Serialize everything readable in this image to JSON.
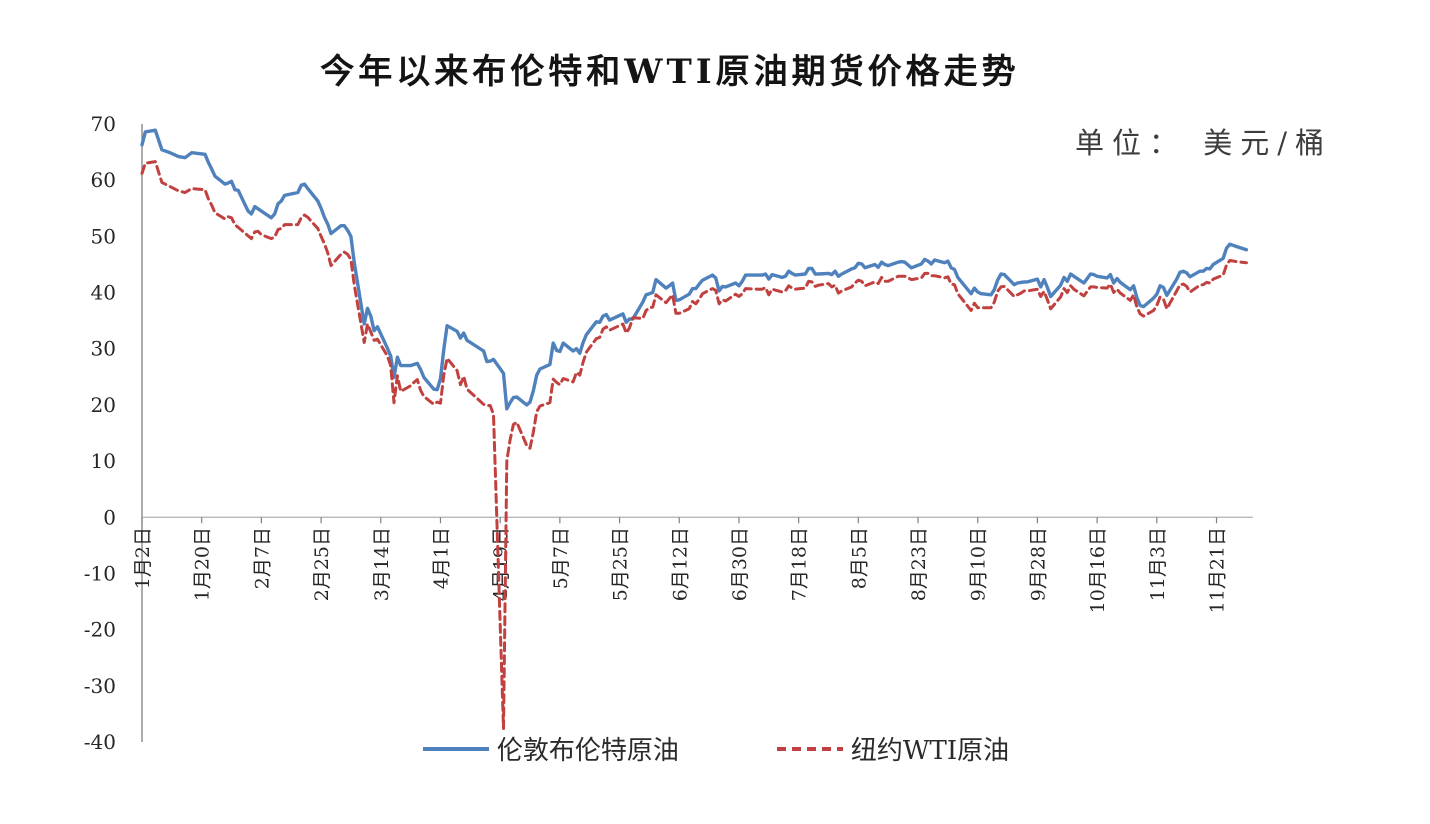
{
  "title": "今年以来布伦特和WTI原油期货价格走势",
  "unit_label": "单位： 美元/桶",
  "legend": {
    "items": [
      {
        "label": "伦敦布伦特原油",
        "color": "#4f81bd",
        "style": "solid"
      },
      {
        "label": "纽约WTI原油",
        "color": "#c0413f",
        "style": "dashed"
      }
    ]
  },
  "chart_data": {
    "type": "line",
    "title": "今年以来布伦特和WTI原油期货价格走势",
    "unit": "美元/桶",
    "xlabel": "",
    "ylabel": "美元/桶",
    "ylim": [
      -40,
      70
    ],
    "ytick_step": 10,
    "grid": false,
    "legend_position": "bottom",
    "x_tick_labels": [
      "1月2日",
      "1月20日",
      "2月7日",
      "2月25日",
      "3月14日",
      "4月1日",
      "4月19日",
      "5月7日",
      "5月25日",
      "6月12日",
      "6月30日",
      "7月18日",
      "8月5日",
      "8月23日",
      "9月10日",
      "9月28日",
      "10月16日",
      "11月3日",
      "11月21日"
    ],
    "x_tick_days": [
      0,
      18,
      36,
      54,
      72,
      90,
      108,
      126,
      144,
      162,
      180,
      198,
      216,
      234,
      252,
      270,
      288,
      306,
      324
    ],
    "x_domain_days": [
      0,
      335
    ],
    "days": [
      0,
      1,
      4,
      6,
      8,
      11,
      13,
      15,
      19,
      20,
      21,
      22,
      25,
      26,
      27,
      28,
      29,
      32,
      33,
      34,
      35,
      36,
      39,
      40,
      41,
      42,
      43,
      47,
      48,
      49,
      50,
      53,
      54,
      55,
      56,
      57,
      60,
      61,
      62,
      63,
      64,
      67,
      68,
      69,
      70,
      71,
      74,
      75,
      76,
      77,
      78,
      81,
      82,
      83,
      84,
      85,
      88,
      89,
      90,
      91,
      92,
      95,
      96,
      97,
      98,
      103,
      104,
      105,
      106,
      109,
      110,
      111,
      112,
      113,
      116,
      117,
      118,
      119,
      120,
      123,
      124,
      125,
      126,
      127,
      130,
      131,
      132,
      133,
      134,
      137,
      138,
      139,
      140,
      141,
      145,
      146,
      147,
      148,
      151,
      152,
      153,
      154,
      155,
      158,
      159,
      160,
      161,
      162,
      165,
      166,
      167,
      168,
      169,
      172,
      173,
      174,
      175,
      176,
      179,
      180,
      181,
      182,
      186,
      187,
      188,
      189,
      190,
      193,
      194,
      195,
      196,
      197,
      200,
      201,
      202,
      203,
      204,
      207,
      208,
      209,
      210,
      211,
      214,
      215,
      216,
      217,
      218,
      221,
      222,
      223,
      224,
      225,
      228,
      229,
      230,
      231,
      232,
      235,
      236,
      237,
      238,
      239,
      242,
      243,
      244,
      245,
      246,
      250,
      251,
      252,
      253,
      256,
      257,
      258,
      259,
      260,
      263,
      264,
      265,
      266,
      267,
      270,
      271,
      272,
      273,
      274,
      277,
      278,
      279,
      280,
      281,
      284,
      285,
      286,
      287,
      288,
      291,
      292,
      293,
      294,
      295,
      298,
      299,
      300,
      301,
      302,
      305,
      306,
      307,
      308,
      309,
      312,
      313,
      314,
      315,
      316,
      319,
      320,
      321,
      322,
      323,
      326,
      327,
      328,
      330,
      333
    ],
    "series": [
      {
        "name": "伦敦布伦特原油",
        "color": "#4f81bd",
        "dash": null,
        "width": 3.4,
        "values": [
          66.3,
          68.6,
          68.9,
          65.4,
          65.0,
          64.2,
          64.0,
          64.9,
          64.6,
          63.2,
          62.0,
          60.7,
          59.3,
          59.5,
          59.8,
          58.3,
          58.2,
          54.5,
          54.0,
          55.3,
          54.9,
          54.5,
          53.3,
          54.0,
          55.8,
          56.3,
          57.3,
          57.8,
          59.1,
          59.3,
          58.5,
          56.3,
          55.0,
          53.4,
          52.2,
          50.5,
          51.9,
          51.9,
          51.1,
          50.0,
          45.3,
          34.4,
          37.2,
          35.8,
          33.2,
          33.9,
          30.1,
          28.7,
          24.9,
          28.5,
          27.0,
          27.0,
          27.2,
          27.4,
          26.3,
          24.9,
          22.8,
          22.7,
          24.7,
          29.9,
          34.1,
          33.1,
          31.9,
          32.8,
          31.5,
          29.6,
          27.7,
          27.8,
          28.1,
          25.6,
          19.3,
          20.4,
          21.3,
          21.4,
          20.0,
          20.5,
          22.5,
          25.3,
          26.4,
          27.2,
          31.0,
          29.7,
          29.5,
          31.0,
          29.6,
          30.0,
          29.2,
          31.1,
          32.5,
          34.8,
          34.7,
          35.8,
          36.1,
          35.1,
          36.2,
          34.7,
          35.3,
          35.3,
          38.3,
          39.6,
          39.8,
          40.0,
          42.3,
          40.8,
          41.2,
          41.7,
          38.6,
          38.7,
          39.7,
          40.7,
          40.7,
          41.5,
          42.2,
          43.1,
          42.6,
          40.3,
          41.1,
          41.0,
          41.7,
          41.2,
          42.0,
          43.1,
          43.1,
          43.1,
          43.3,
          42.4,
          43.2,
          42.7,
          42.9,
          43.8,
          43.4,
          43.1,
          43.3,
          44.3,
          44.3,
          43.3,
          43.3,
          43.4,
          43.2,
          43.8,
          42.9,
          43.3,
          44.2,
          44.4,
          45.2,
          45.1,
          44.4,
          45.0,
          44.5,
          45.4,
          45.0,
          44.8,
          45.4,
          45.5,
          45.4,
          44.9,
          44.4,
          45.1,
          45.9,
          45.6,
          45.1,
          45.8,
          45.3,
          45.6,
          44.4,
          44.1,
          42.7,
          39.8,
          40.8,
          40.1,
          39.8,
          39.6,
          40.5,
          42.2,
          43.3,
          43.2,
          41.4,
          41.7,
          41.8,
          41.9,
          41.9,
          42.4,
          41.0,
          42.3,
          40.9,
          39.3,
          41.3,
          42.7,
          42.0,
          43.3,
          42.9,
          41.7,
          42.5,
          43.3,
          43.2,
          42.9,
          42.6,
          43.2,
          41.7,
          42.5,
          41.8,
          40.5,
          41.2,
          39.1,
          37.7,
          37.5,
          39.0,
          39.7,
          41.2,
          40.9,
          39.5,
          42.4,
          43.6,
          43.8,
          43.5,
          42.8,
          43.8,
          43.8,
          44.3,
          44.2,
          45.0,
          46.1,
          47.9,
          48.6,
          48.2,
          47.6
        ]
      },
      {
        "name": "纽约WTI原油",
        "color": "#c0413f",
        "dash": "8 5",
        "width": 3.0,
        "values": [
          61.2,
          63.0,
          63.3,
          59.6,
          59.0,
          58.1,
          57.8,
          58.5,
          58.3,
          56.7,
          55.6,
          54.2,
          53.1,
          53.5,
          53.3,
          52.1,
          51.6,
          50.1,
          49.6,
          50.8,
          50.9,
          50.3,
          49.6,
          49.9,
          51.2,
          51.4,
          52.1,
          52.1,
          53.3,
          53.8,
          53.4,
          51.4,
          50.0,
          48.7,
          47.1,
          44.8,
          46.8,
          47.2,
          46.8,
          45.9,
          41.3,
          31.1,
          34.4,
          33.0,
          31.5,
          31.7,
          28.7,
          27.0,
          20.4,
          25.2,
          22.4,
          23.4,
          24.0,
          24.5,
          22.6,
          21.5,
          20.1,
          20.5,
          20.3,
          25.3,
          28.3,
          26.1,
          23.6,
          25.1,
          22.8,
          20.1,
          19.9,
          19.9,
          18.3,
          -37.6,
          10.0,
          13.8,
          16.5,
          16.9,
          12.8,
          12.3,
          15.1,
          18.8,
          19.8,
          20.4,
          24.6,
          24.0,
          23.6,
          24.7,
          24.1,
          25.8,
          25.3,
          27.6,
          29.4,
          31.8,
          32.0,
          33.5,
          33.9,
          33.3,
          34.4,
          32.8,
          33.7,
          35.5,
          35.4,
          36.8,
          37.3,
          37.4,
          39.6,
          38.2,
          38.9,
          39.6,
          36.3,
          36.3,
          37.1,
          38.4,
          38.0,
          38.8,
          39.8,
          40.7,
          40.4,
          38.0,
          38.7,
          38.5,
          39.7,
          39.3,
          39.8,
          40.7,
          40.6,
          40.6,
          40.9,
          39.6,
          40.6,
          40.1,
          40.3,
          41.2,
          40.8,
          40.6,
          40.8,
          42.0,
          41.9,
          41.1,
          41.3,
          41.6,
          41.0,
          41.3,
          39.9,
          40.3,
          41.0,
          41.7,
          42.2,
          42.0,
          41.2,
          41.9,
          41.6,
          42.7,
          42.0,
          42.0,
          42.9,
          42.9,
          42.9,
          42.6,
          42.3,
          42.6,
          43.4,
          43.4,
          43.0,
          43.0,
          42.6,
          42.8,
          41.5,
          41.4,
          39.8,
          36.8,
          38.1,
          37.3,
          37.3,
          37.3,
          38.3,
          40.2,
          41.0,
          41.1,
          39.3,
          39.6,
          39.9,
          40.3,
          40.3,
          40.6,
          39.3,
          40.2,
          38.7,
          37.1,
          39.2,
          40.7,
          40.0,
          41.2,
          40.6,
          39.4,
          40.2,
          41.0,
          41.0,
          40.9,
          40.8,
          41.5,
          40.0,
          40.6,
          39.9,
          38.6,
          39.6,
          37.4,
          36.2,
          35.8,
          36.8,
          37.7,
          39.2,
          38.8,
          37.1,
          40.3,
          41.4,
          41.5,
          41.1,
          40.1,
          41.3,
          41.4,
          41.8,
          41.7,
          42.4,
          43.1,
          44.9,
          45.7,
          45.5,
          45.3
        ]
      }
    ]
  }
}
